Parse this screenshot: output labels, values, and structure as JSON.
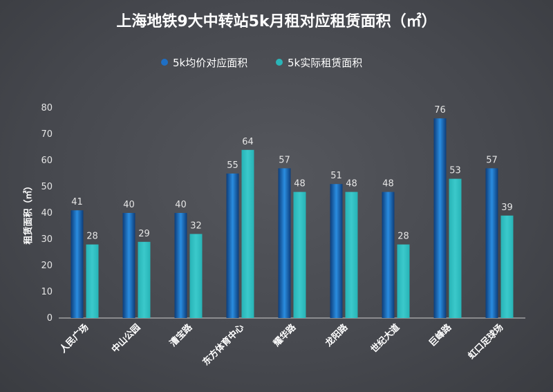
{
  "chart_data": {
    "type": "bar",
    "title": "上海地铁9大中转站5k月租对应租赁面积（㎡）",
    "ylabel": "租赁面积（㎡）",
    "xlabel": "",
    "ylim": [
      0,
      80
    ],
    "yticks": [
      0,
      10,
      20,
      30,
      40,
      50,
      60,
      70,
      80
    ],
    "grid": false,
    "legend_position": "top-center",
    "categories": [
      "人民广场",
      "中山公园",
      "漕宝路",
      "东方体育中心",
      "耀华路",
      "龙阳路",
      "世纪大道",
      "巨峰路",
      "虹口足球场"
    ],
    "series": [
      {
        "name": "5k均价对应面积",
        "values": [
          41,
          40,
          40,
          55,
          57,
          51,
          48,
          76,
          57
        ],
        "color": "#1f6fc4"
      },
      {
        "name": "5k实际租赁面积",
        "values": [
          28,
          29,
          32,
          64,
          48,
          48,
          28,
          53,
          39
        ],
        "color": "#2ab5b8"
      }
    ]
  }
}
